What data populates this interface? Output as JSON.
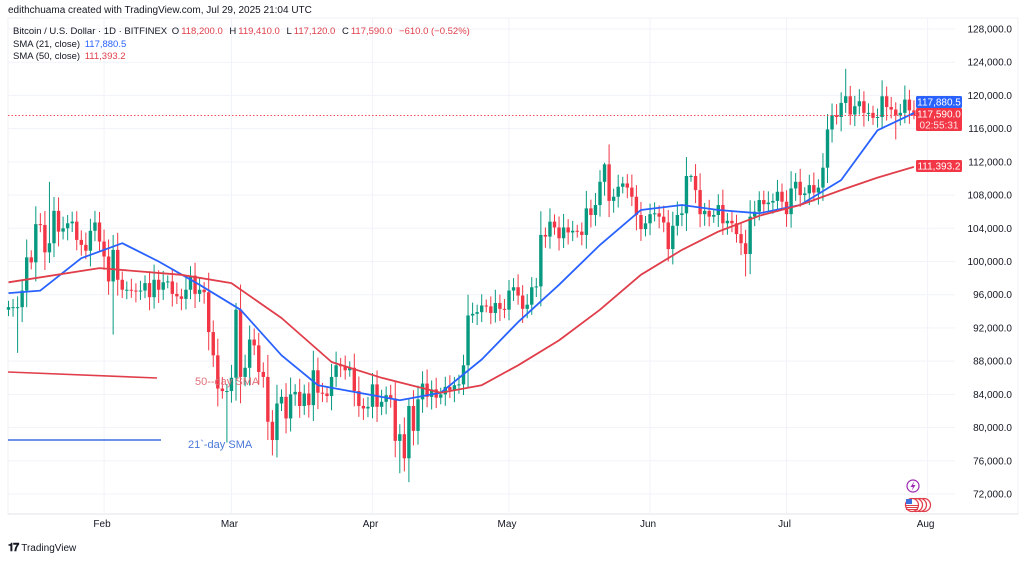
{
  "header": {
    "credit": "edithchuama created with TradingView.com, Jul 29, 2025 21:04 UTC",
    "symbol": "Bitcoin / U.S. Dollar · 1D · BITFINEX",
    "o_label": "O",
    "o_value": "118,200.0",
    "h_label": "H",
    "h_value": "119,410.0",
    "l_label": "L",
    "l_value": "117,120.0",
    "c_label": "C",
    "c_value": "117,590.0",
    "change": "−610.0 (−0.52%)",
    "sma21_label": "SMA (21, close)",
    "sma21_value": "117,880.5",
    "sma50_label": "SMA (50, close)",
    "sma50_value": "111,393.2"
  },
  "annotations": {
    "sma50": "50--day SMA",
    "sma21": "21`-day SMA"
  },
  "price_tags": {
    "sma21": "117,880.5",
    "last": "117,590.0",
    "countdown": "02:55:31",
    "sma50": "111,393.2"
  },
  "footer": {
    "brand": "TradingView"
  },
  "colors": {
    "up": "#089981",
    "down": "#f23645",
    "sma21": "#2962ff",
    "sma50": "#e03e4a"
  },
  "chart_data": {
    "type": "candlestick",
    "title": "Bitcoin / U.S. Dollar · 1D · BITFINEX",
    "start_date": "2025-01-11",
    "ylim": [
      70000,
      130000
    ],
    "yticks": [
      128000,
      124000,
      120000,
      116000,
      112000,
      108000,
      104000,
      100000,
      96000,
      92000,
      88000,
      84000,
      80000,
      76000,
      72000
    ],
    "ytick_labels": [
      "128,000.0",
      "124,000.0",
      "120,000.0",
      "116,000.0",
      "112,000.0",
      "108,000.0",
      "104,000.0",
      "100,000.0",
      "96,000.0",
      "92,000.0",
      "88,000.0",
      "84,000.0",
      "80,000.0",
      "76,000.0",
      "72,000.0"
    ],
    "xticks": [
      {
        "label": "Feb",
        "day": 21
      },
      {
        "label": "Mar",
        "day": 49
      },
      {
        "label": "Apr",
        "day": 80
      },
      {
        "label": "May",
        "day": 110
      },
      {
        "label": "Jun",
        "day": 141
      },
      {
        "label": "Jul",
        "day": 171
      },
      {
        "label": "Aug",
        "day": 202
      }
    ],
    "closes": [
      94500,
      94500,
      94500,
      96500,
      100500,
      99900,
      104500,
      104400,
      101100,
      102200,
      106100,
      103600,
      104000,
      104600,
      104800,
      102600,
      102000,
      101300,
      103700,
      104700,
      102400,
      100600,
      97600,
      101400,
      97800,
      96600,
      96600,
      96500,
      96400,
      96500,
      97400,
      95700,
      97800,
      96600,
      97500,
      97600,
      96100,
      95800,
      95500,
      96600,
      98300,
      96100,
      96600,
      96300,
      91500,
      88700,
      84700,
      84400,
      84400,
      86000,
      94200,
      86100,
      87200,
      90600,
      89900,
      86700,
      86100,
      80700,
      78500,
      82900,
      83700,
      81100,
      84000,
      84300,
      82600,
      84100,
      82700,
      86900,
      84200,
      84100,
      83800,
      86100,
      87500,
      87400,
      86900,
      87200,
      84400,
      82600,
      82300,
      82500,
      85200,
      82500,
      83100,
      83900,
      83500,
      78400,
      79200,
      76300,
      82600,
      79600,
      83400,
      85300,
      83700,
      84600,
      83600,
      84000,
      84900,
      84500,
      85100,
      85200,
      87500,
      93500,
      93700,
      93900,
      94700,
      94600,
      93800,
      95000,
      94300,
      94200,
      96500,
      96900,
      95900,
      94300,
      94800,
      96900,
      97000,
      103200,
      103000,
      104800,
      104100,
      102800,
      104100,
      103500,
      103700,
      103600,
      103200,
      106400,
      105600,
      106800,
      109600,
      111700,
      107300,
      107800,
      109000,
      109400,
      108900,
      107800,
      105600,
      103900,
      104600,
      105700,
      105800,
      105400,
      104700,
      101500,
      104300,
      105600,
      105800,
      110300,
      110300,
      108600,
      105700,
      106100,
      105400,
      105600,
      106800,
      104600,
      104900,
      104600,
      103300,
      102200,
      100900,
      105400,
      106000,
      107400,
      106900,
      107100,
      107300,
      108400,
      107200,
      105700,
      108800,
      109600,
      108000,
      108200,
      109200,
      108300,
      108900,
      111300,
      115900,
      117600,
      117400,
      119100,
      119900,
      117700,
      118700,
      119300,
      117900,
      117900,
      117300,
      117400,
      119900,
      118600,
      118300,
      117600,
      117900,
      119500,
      118200,
      117590
    ],
    "last_open": 118200,
    "extremes": [
      {
        "day": 2,
        "low": 89000
      },
      {
        "day": 9,
        "high": 109600
      },
      {
        "day": 23,
        "low": 91200
      },
      {
        "day": 48,
        "low": 78200
      },
      {
        "day": 50,
        "high": 95000
      },
      {
        "day": 86,
        "low": 74500
      },
      {
        "day": 88,
        "high": 83500
      },
      {
        "day": 131,
        "high": 111900
      },
      {
        "day": 150,
        "high": 110500
      },
      {
        "day": 162,
        "low": 98200
      },
      {
        "day": 184,
        "high": 123200
      },
      {
        "day": 195,
        "low": 114700
      },
      {
        "day": 199,
        "high": 119410,
        "low": 117120
      }
    ],
    "series": [
      {
        "name": "SMA (21, close)",
        "points": [
          [
            0,
            96200
          ],
          [
            7,
            96500
          ],
          [
            16,
            100400
          ],
          [
            25,
            102200
          ],
          [
            33,
            100000
          ],
          [
            42,
            97200
          ],
          [
            51,
            94200
          ],
          [
            60,
            88700
          ],
          [
            68,
            85100
          ],
          [
            77,
            84200
          ],
          [
            86,
            83300
          ],
          [
            95,
            84200
          ],
          [
            104,
            88200
          ],
          [
            112,
            92700
          ],
          [
            121,
            97200
          ],
          [
            130,
            102000
          ],
          [
            139,
            106200
          ],
          [
            148,
            106800
          ],
          [
            156,
            106200
          ],
          [
            165,
            105800
          ],
          [
            174,
            106800
          ],
          [
            183,
            109800
          ],
          [
            191,
            115800
          ],
          [
            199,
            117880
          ]
        ]
      },
      {
        "name": "SMA (50, close)",
        "points": [
          [
            0,
            97500
          ],
          [
            20,
            99200
          ],
          [
            38,
            98400
          ],
          [
            49,
            97400
          ],
          [
            60,
            93200
          ],
          [
            71,
            87900
          ],
          [
            82,
            86000
          ],
          [
            95,
            84200
          ],
          [
            104,
            85100
          ],
          [
            112,
            87500
          ],
          [
            121,
            90500
          ],
          [
            130,
            94200
          ],
          [
            139,
            98400
          ],
          [
            148,
            101400
          ],
          [
            156,
            103600
          ],
          [
            165,
            105500
          ],
          [
            174,
            106800
          ],
          [
            183,
            108600
          ],
          [
            191,
            110100
          ],
          [
            199,
            111393
          ]
        ]
      }
    ],
    "last_price": 117590,
    "grid": true
  }
}
